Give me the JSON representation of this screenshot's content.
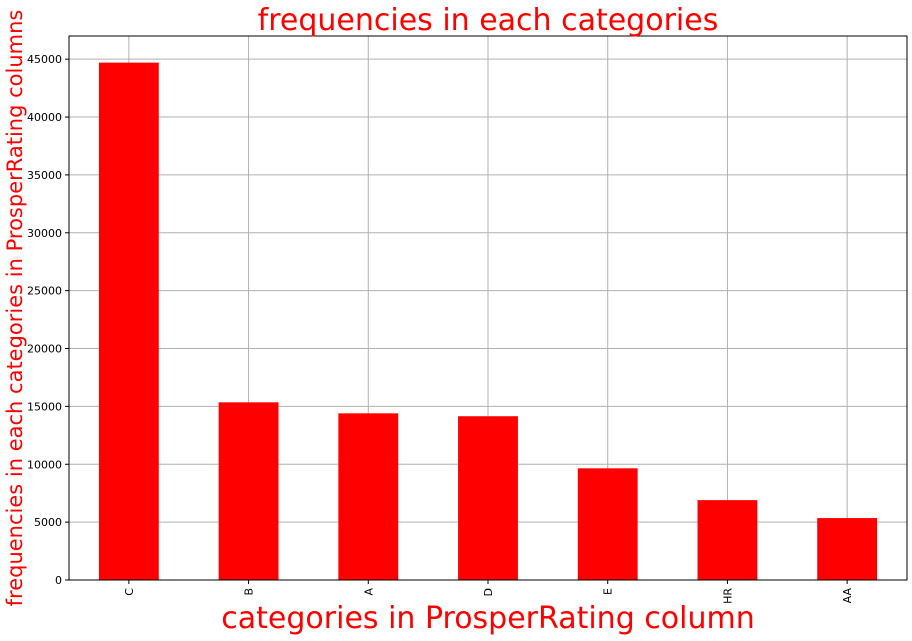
{
  "chart_data": {
    "type": "bar",
    "title": "frequencies in each categories",
    "xlabel": "categories in ProsperRating column",
    "ylabel": "frequencies in each categories in ProsperRating columns",
    "categories": [
      "C",
      "B",
      "A",
      "D",
      "E",
      "HR",
      "AA"
    ],
    "values": [
      44700,
      15350,
      14400,
      14150,
      9650,
      6900,
      5350
    ],
    "ylim": [
      0,
      47000
    ],
    "yticks": [
      0,
      5000,
      10000,
      15000,
      20000,
      25000,
      30000,
      35000,
      40000,
      45000
    ],
    "grid": true,
    "colors": {
      "bar": "#ff0000",
      "title": "#ff0000",
      "axis_label": "#ff0000",
      "grid": "#b0b0b0"
    }
  }
}
